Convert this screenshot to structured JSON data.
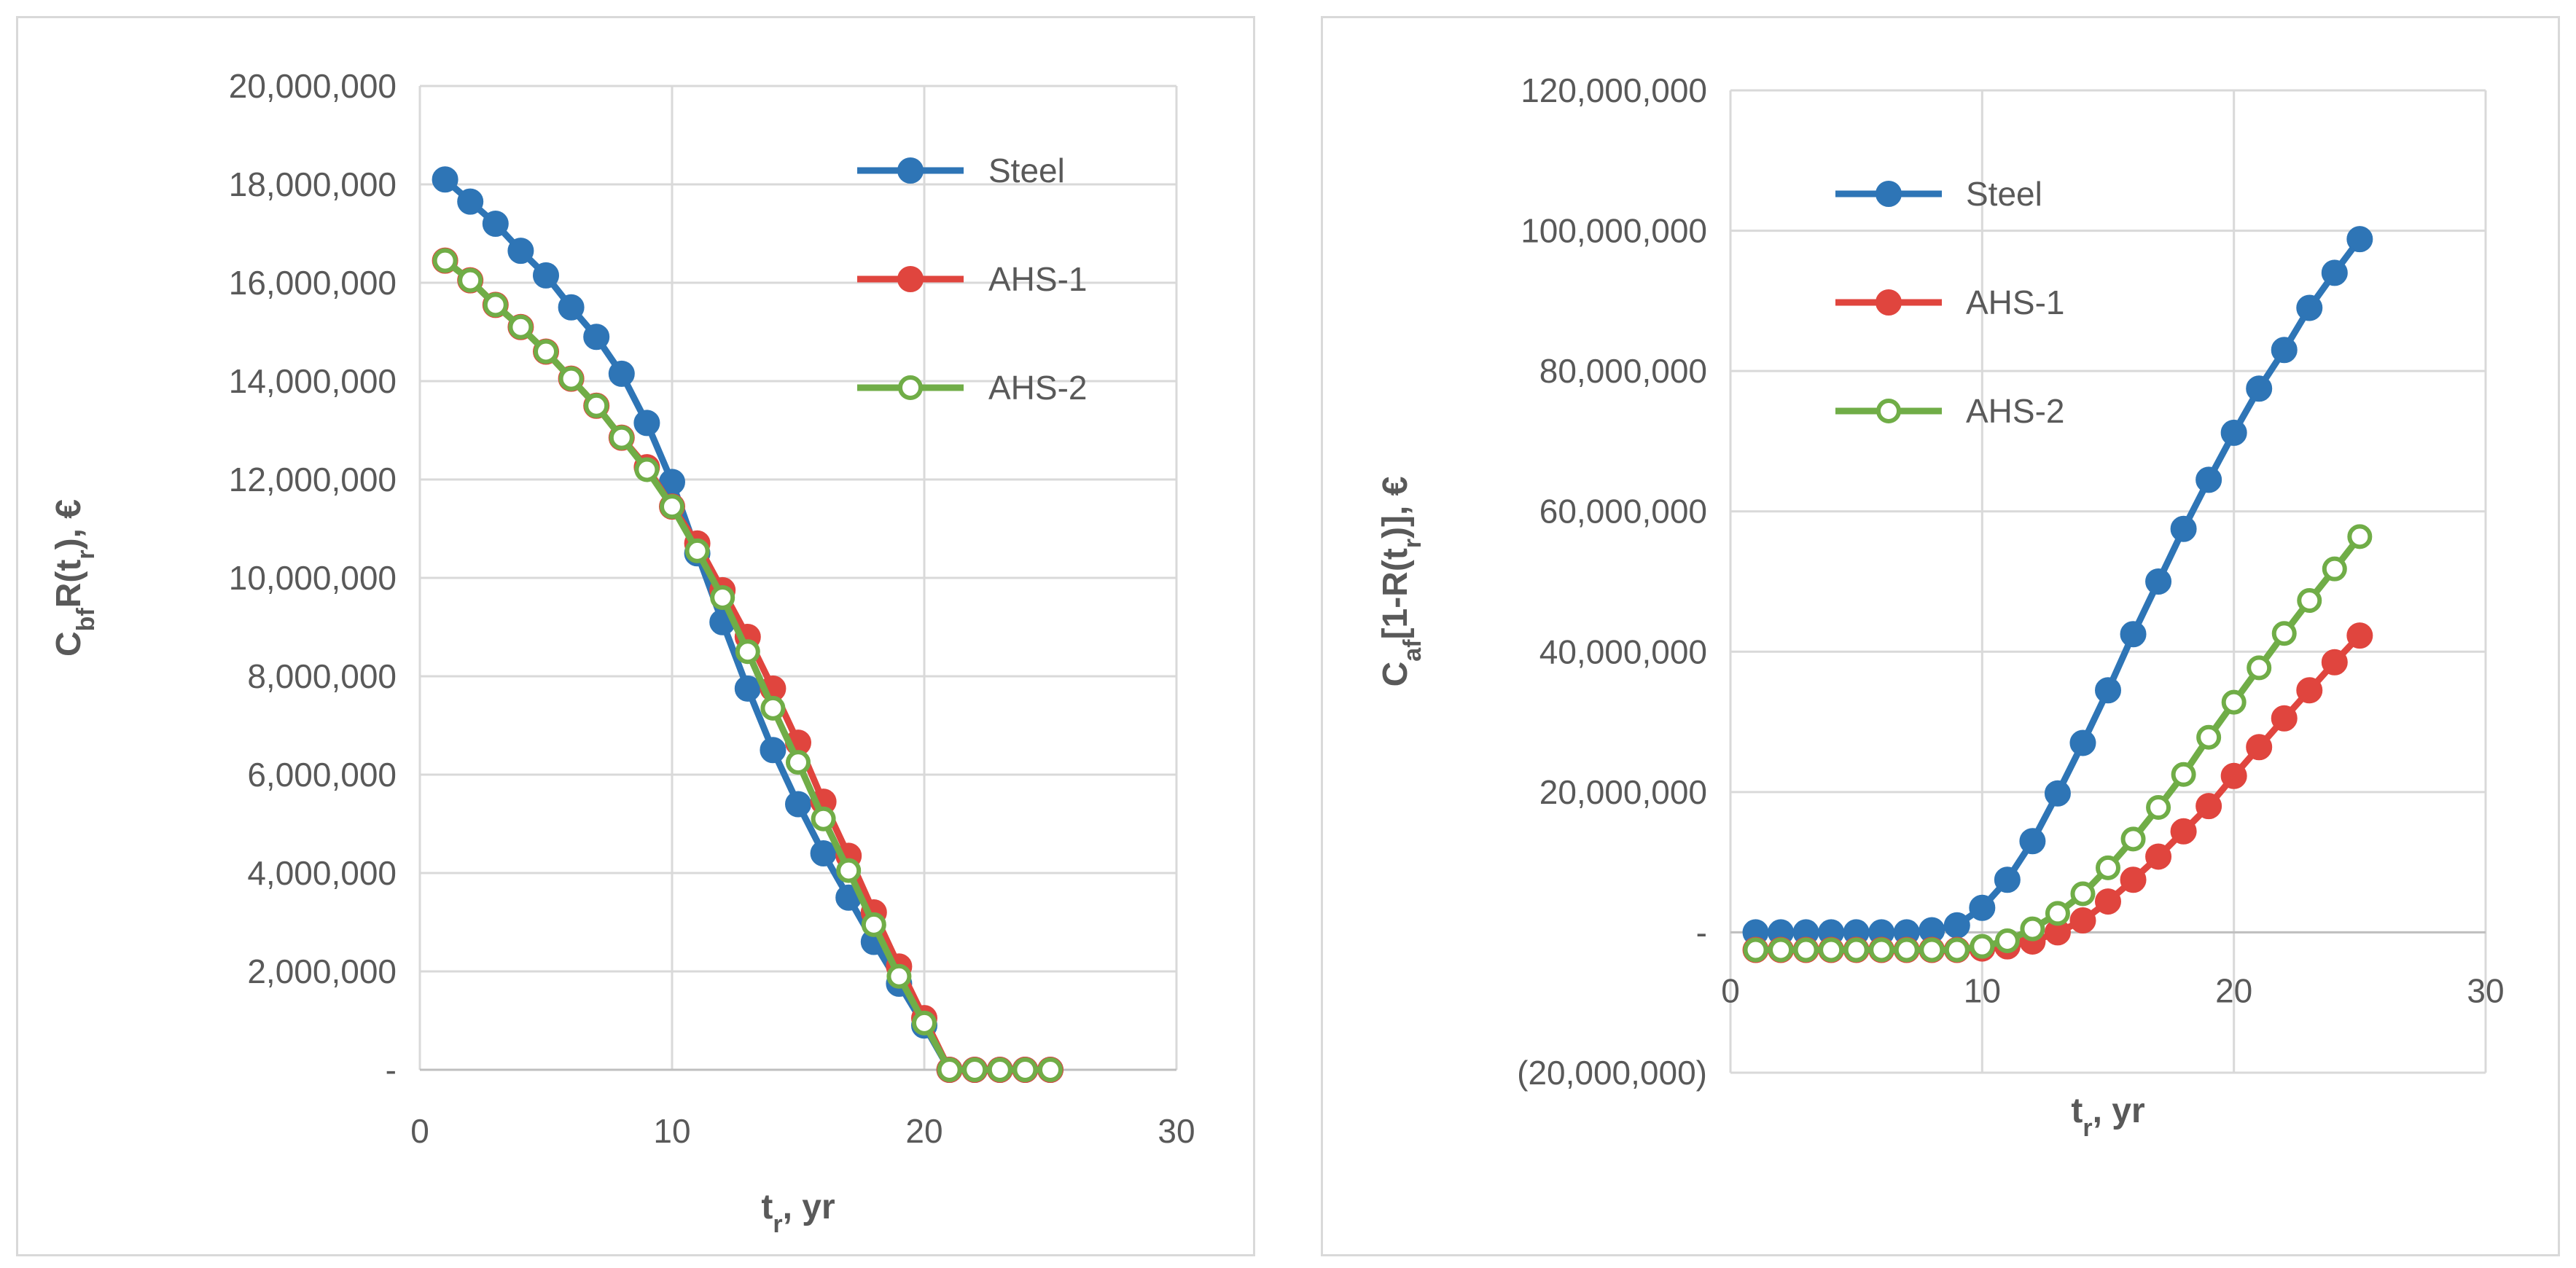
{
  "colors": {
    "steel": "#2e75b6",
    "ahs1": "#e0453e",
    "ahs2": "#70ad47",
    "grid": "#d9d9d9",
    "text": "#595959"
  },
  "chart_data": [
    {
      "type": "line",
      "title": "",
      "xlabel_main": "t",
      "xlabel_sub": "r",
      "xlabel_tail": ", yr",
      "ylabel_parts": [
        "C",
        "bf",
        "R(t",
        "r",
        "), €"
      ],
      "xlim": [
        0,
        30
      ],
      "ylim": [
        0,
        20000000
      ],
      "xticks": [
        0,
        10,
        20,
        30
      ],
      "yticks": [
        0,
        2000000,
        4000000,
        6000000,
        8000000,
        10000000,
        12000000,
        14000000,
        16000000,
        18000000,
        20000000
      ],
      "ytick_labels": [
        "-",
        "2,000,000",
        "4,000,000",
        "6,000,000",
        "8,000,000",
        "10,000,000",
        "12,000,000",
        "14,000,000",
        "16,000,000",
        "18,000,000",
        "20,000,000"
      ],
      "legend_position": "top-right",
      "x": [
        1,
        2,
        3,
        4,
        5,
        6,
        7,
        8,
        9,
        10,
        11,
        12,
        13,
        14,
        15,
        16,
        17,
        18,
        19,
        20,
        21,
        22,
        23,
        24,
        25
      ],
      "series": [
        {
          "name": "Steel",
          "marker": "filled",
          "values": [
            18100000,
            17650000,
            17200000,
            16650000,
            16150000,
            15500000,
            14900000,
            14150000,
            13150000,
            11950000,
            10500000,
            9100000,
            7750000,
            6500000,
            5400000,
            4400000,
            3500000,
            2600000,
            1750000,
            900000,
            0,
            0,
            0,
            0,
            0
          ]
        },
        {
          "name": "AHS-1",
          "marker": "filled",
          "values": [
            16450000,
            16050000,
            15550000,
            15100000,
            14600000,
            14050000,
            13500000,
            12850000,
            12250000,
            11450000,
            10700000,
            9750000,
            8800000,
            7750000,
            6650000,
            5450000,
            4350000,
            3200000,
            2100000,
            1050000,
            0,
            0,
            0,
            0,
            0
          ]
        },
        {
          "name": "AHS-2",
          "marker": "open",
          "values": [
            16450000,
            16050000,
            15550000,
            15100000,
            14600000,
            14050000,
            13500000,
            12850000,
            12200000,
            11450000,
            10550000,
            9600000,
            8500000,
            7350000,
            6250000,
            5100000,
            4050000,
            2950000,
            1900000,
            950000,
            0,
            0,
            0,
            0,
            0
          ]
        }
      ]
    },
    {
      "type": "line",
      "title": "",
      "xlabel_main": "t",
      "xlabel_sub": "r",
      "xlabel_tail": ", yr",
      "ylabel_parts": [
        "C",
        "af",
        "[1-R(t",
        "r",
        ")], €"
      ],
      "xlim": [
        0,
        30
      ],
      "ylim": [
        -20000000,
        120000000
      ],
      "xticks": [
        0,
        10,
        20,
        30
      ],
      "yticks": [
        -20000000,
        0,
        20000000,
        40000000,
        60000000,
        80000000,
        100000000,
        120000000
      ],
      "ytick_labels": [
        "(20,000,000)",
        "-",
        "20,000,000",
        "40,000,000",
        "60,000,000",
        "80,000,000",
        "100,000,000",
        "120,000,000"
      ],
      "legend_position": "top-left",
      "x": [
        1,
        2,
        3,
        4,
        5,
        6,
        7,
        8,
        9,
        10,
        11,
        12,
        13,
        14,
        15,
        16,
        17,
        18,
        19,
        20,
        21,
        22,
        23,
        24,
        25
      ],
      "series": [
        {
          "name": "Steel",
          "marker": "filled",
          "values": [
            0,
            0,
            0,
            0,
            0,
            0,
            0,
            300000,
            1000000,
            3500000,
            7500000,
            13000000,
            19800000,
            27000000,
            34500000,
            42500000,
            50000000,
            57500000,
            64500000,
            71200000,
            77500000,
            83000000,
            89000000,
            94000000,
            98800000
          ]
        },
        {
          "name": "AHS-1",
          "marker": "filled",
          "values": [
            -2500000,
            -2500000,
            -2500000,
            -2500000,
            -2500000,
            -2500000,
            -2500000,
            -2500000,
            -2500000,
            -2300000,
            -2000000,
            -1300000,
            0,
            1700000,
            4400000,
            7500000,
            10800000,
            14400000,
            18000000,
            22300000,
            26400000,
            30500000,
            34500000,
            38500000,
            42300000
          ]
        },
        {
          "name": "AHS-2",
          "marker": "open",
          "values": [
            -2500000,
            -2500000,
            -2500000,
            -2500000,
            -2500000,
            -2500000,
            -2500000,
            -2500000,
            -2500000,
            -2000000,
            -1200000,
            500000,
            2700000,
            5500000,
            9200000,
            13300000,
            17800000,
            22500000,
            27800000,
            32800000,
            37700000,
            42600000,
            47300000,
            51800000,
            56400000
          ]
        }
      ]
    }
  ]
}
